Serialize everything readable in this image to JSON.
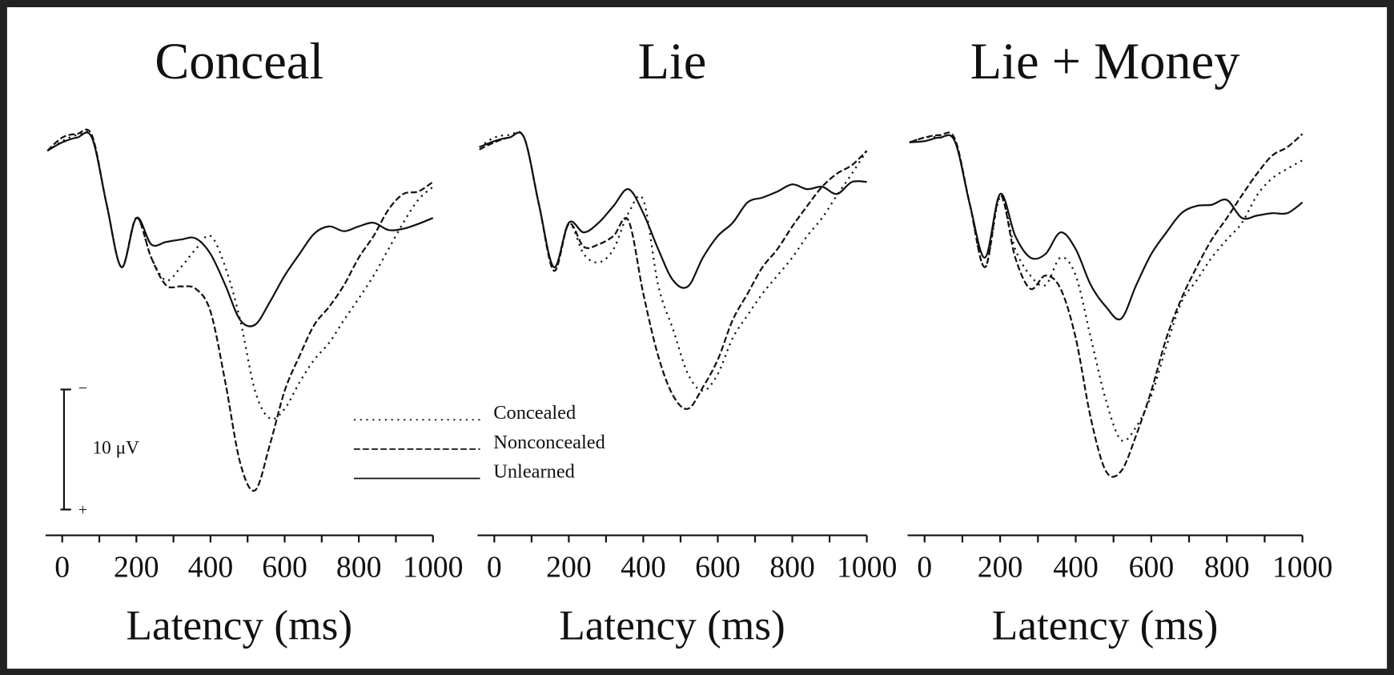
{
  "chart_data": [
    {
      "type": "line",
      "title": "Conceal",
      "x_label": "Latency (ms)",
      "x": [
        -40,
        0,
        40,
        80,
        120,
        160,
        200,
        240,
        280,
        320,
        360,
        400,
        440,
        480,
        520,
        560,
        600,
        640,
        680,
        720,
        760,
        800,
        840,
        880,
        920,
        960,
        1000
      ],
      "series": [
        {
          "name": "Concealed",
          "color": "#111111",
          "dash": "dotted",
          "values": [
            0.7,
            -0.1,
            -0.6,
            -0.4,
            5.2,
            10.4,
            6.3,
            9.6,
            11.5,
            10.4,
            8.9,
            7.8,
            10.4,
            14.8,
            20.7,
            23.0,
            22.2,
            20.0,
            18.1,
            16.7,
            14.8,
            13.0,
            11.1,
            8.9,
            6.7,
            4.8,
            3.7
          ]
        },
        {
          "name": "Nonconcealed",
          "color": "#111111",
          "dash": "dashed",
          "values": [
            0.7,
            -0.4,
            -0.7,
            -0.6,
            5.2,
            10.4,
            6.3,
            9.6,
            11.9,
            12.0,
            12.2,
            14.1,
            20.0,
            26.7,
            29.0,
            25.2,
            20.7,
            17.8,
            15.2,
            13.7,
            11.9,
            9.6,
            7.8,
            5.6,
            4.3,
            4.1,
            3.3
          ]
        },
        {
          "name": "Unlearned",
          "color": "#111111",
          "dash": "solid",
          "values": [
            0.7,
            0,
            -0.4,
            -0.4,
            5.2,
            10.4,
            6.3,
            8.5,
            8.3,
            8.1,
            8.0,
            9.3,
            11.9,
            14.8,
            15.2,
            13.3,
            11.1,
            9.3,
            7.6,
            7.0,
            7.4,
            7.0,
            6.7,
            7.3,
            7.2,
            6.8,
            6.3
          ]
        }
      ],
      "xlim": [
        -45,
        1000
      ],
      "xticks": [
        0,
        200,
        400,
        600,
        800,
        1000
      ],
      "xminor_ticks": [
        100,
        300,
        500,
        700,
        900
      ],
      "ylim": [
        -2,
        32
      ],
      "y_inverted": true,
      "legend": true,
      "scale_bar": {
        "value": 10,
        "label": "10 μV",
        "top_label": "−",
        "bottom_label": "+"
      }
    },
    {
      "type": "line",
      "title": "Lie",
      "x_label": "Latency (ms)",
      "x": [
        -40,
        0,
        40,
        80,
        120,
        160,
        200,
        240,
        280,
        320,
        360,
        400,
        440,
        480,
        520,
        560,
        600,
        640,
        680,
        720,
        760,
        800,
        840,
        880,
        920,
        960,
        1000
      ],
      "series": [
        {
          "name": "Concealed",
          "color": "#111111",
          "dash": "dotted",
          "values": [
            0.4,
            -0.4,
            -0.6,
            -0.4,
            5.2,
            10.4,
            6.8,
            9.3,
            10.0,
            8.9,
            5.9,
            4.8,
            11.9,
            15.6,
            19.3,
            20.7,
            19.3,
            16.3,
            14.4,
            12.6,
            11.1,
            9.6,
            7.8,
            6.3,
            4.4,
            2.6,
            0.7
          ]
        },
        {
          "name": "Nonconcealed",
          "color": "#111111",
          "dash": "dashed",
          "values": [
            0.6,
            0,
            -0.4,
            -0.4,
            5.2,
            10.7,
            6.8,
            8.7,
            8.5,
            7.8,
            6.5,
            12.6,
            17.8,
            21.1,
            22.2,
            20.4,
            18.1,
            14.8,
            12.6,
            10.4,
            8.9,
            7.0,
            5.3,
            3.7,
            2.6,
            1.9,
            0.7
          ]
        },
        {
          "name": "Unlearned",
          "color": "#111111",
          "dash": "solid",
          "values": [
            0.4,
            -0.1,
            -0.4,
            -0.4,
            5.2,
            10.4,
            6.7,
            7.5,
            6.7,
            5.3,
            3.9,
            5.9,
            8.9,
            11.5,
            12.0,
            9.6,
            7.8,
            6.7,
            5.0,
            4.6,
            4.1,
            3.5,
            3.9,
            3.7,
            4.3,
            3.3,
            3.3
          ]
        }
      ],
      "xlim": [
        -45,
        1000
      ],
      "xticks": [
        0,
        200,
        400,
        600,
        800,
        1000
      ],
      "xminor_ticks": [
        100,
        300,
        500,
        700,
        900
      ],
      "ylim": [
        -2,
        32
      ],
      "y_inverted": true
    },
    {
      "type": "line",
      "title": "Lie + Money",
      "x_label": "Latency (ms)",
      "x": [
        -40,
        0,
        40,
        80,
        120,
        160,
        200,
        240,
        280,
        320,
        360,
        400,
        440,
        480,
        520,
        560,
        600,
        640,
        680,
        720,
        760,
        800,
        840,
        880,
        920,
        960,
        1000
      ],
      "series": [
        {
          "name": "Concealed",
          "color": "#111111",
          "dash": "dotted",
          "values": [
            0,
            -0.4,
            -0.4,
            -0.1,
            5.2,
            10.4,
            4.6,
            8.9,
            11.1,
            11.9,
            9.6,
            11.1,
            16.3,
            21.5,
            24.8,
            23.7,
            21.1,
            17.0,
            13.3,
            11.5,
            9.6,
            8.1,
            6.7,
            4.4,
            3.0,
            2.2,
            1.5
          ]
        },
        {
          "name": "Nonconcealed",
          "color": "#111111",
          "dash": "dashed",
          "values": [
            0,
            -0.4,
            -0.6,
            -0.3,
            5.2,
            10.4,
            4.4,
            9.6,
            12.2,
            11.1,
            12.2,
            16.3,
            23.0,
            27.4,
            27.4,
            24.4,
            20.7,
            16.3,
            13.0,
            10.4,
            8.1,
            6.3,
            4.4,
            2.6,
            1.1,
            0.4,
            -0.7
          ]
        },
        {
          "name": "Unlearned",
          "color": "#111111",
          "dash": "solid",
          "values": [
            0,
            -0.1,
            -0.4,
            -0.1,
            5.2,
            9.6,
            4.3,
            7.8,
            9.6,
            9.3,
            7.5,
            8.9,
            11.9,
            13.7,
            14.7,
            11.9,
            9.3,
            7.5,
            5.9,
            5.3,
            5.2,
            4.8,
            6.3,
            6.1,
            5.9,
            5.9,
            5.0
          ]
        }
      ],
      "xlim": [
        -45,
        1000
      ],
      "xticks": [
        0,
        200,
        400,
        600,
        800,
        1000
      ],
      "xminor_ticks": [
        100,
        300,
        500,
        700,
        900
      ],
      "ylim": [
        -2,
        32
      ],
      "y_inverted": true
    }
  ]
}
